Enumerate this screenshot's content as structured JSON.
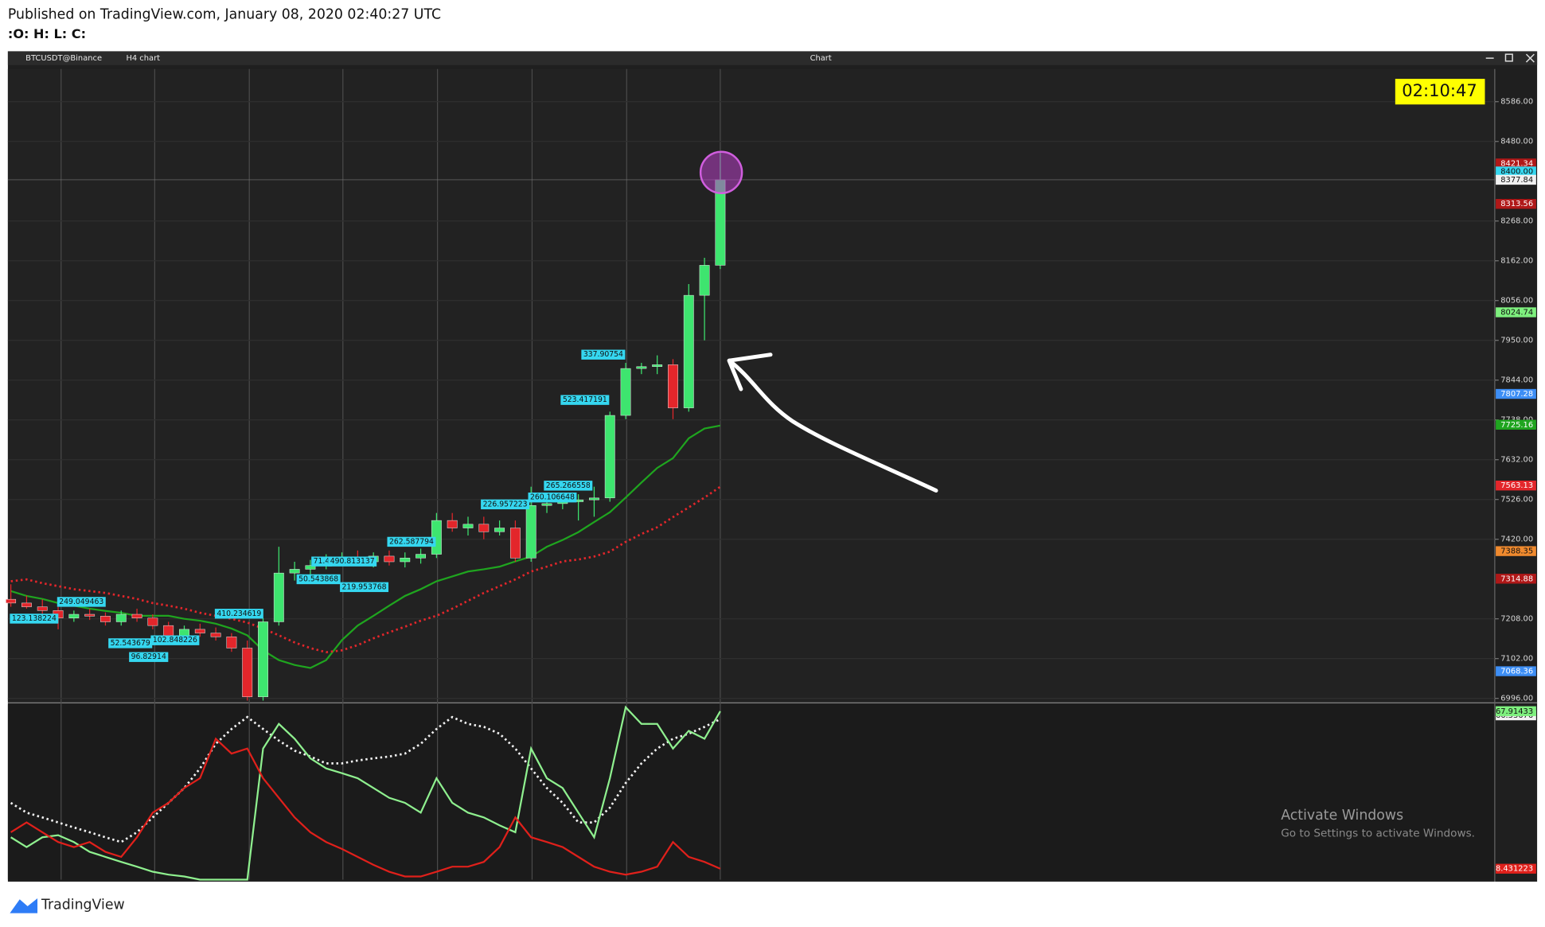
{
  "header": {
    "title": "Published on TradingView.com, January 08, 2020 02:40:27 UTC",
    "ohlc": ":O:  H:  L:  C:"
  },
  "toolbar": {
    "symbol": "BTCUSDT@Binance",
    "interval": "H4 chart",
    "window_title": "Chart"
  },
  "clock": "02:10:47",
  "watermark": {
    "title": "Activate Windows",
    "subtitle": "Go to Settings to activate Windows."
  },
  "footer": {
    "brand": "TradingView"
  },
  "chart_data": [
    {
      "type": "candlestick",
      "open": [
        7260,
        7250,
        7240,
        7230,
        7210,
        7220,
        7215,
        7200,
        7220,
        7210,
        7190,
        7160,
        7180,
        7170,
        7160,
        7130,
        7000,
        7200,
        7330,
        7340,
        7350,
        7365,
        7370,
        7360,
        7375,
        7360,
        7370,
        7380,
        7470,
        7450,
        7460,
        7440,
        7450,
        7370,
        7510,
        7515,
        7520,
        7525,
        7530,
        7750,
        7875,
        7880,
        7885,
        7770,
        8070,
        8150
      ],
      "high": [
        7300,
        7270,
        7260,
        7240,
        7230,
        7235,
        7225,
        7230,
        7235,
        7220,
        7200,
        7190,
        7195,
        7185,
        7170,
        7150,
        7210,
        7400,
        7360,
        7365,
        7380,
        7385,
        7390,
        7385,
        7390,
        7385,
        7395,
        7490,
        7490,
        7480,
        7480,
        7470,
        7470,
        7560,
        7530,
        7540,
        7540,
        7560,
        7760,
        7890,
        7890,
        7910,
        7900,
        8100,
        8170,
        8450
      ],
      "low": [
        7240,
        7235,
        7220,
        7180,
        7200,
        7205,
        7190,
        7190,
        7200,
        7180,
        7150,
        7150,
        7160,
        7150,
        7120,
        6990,
        6990,
        7190,
        7310,
        7325,
        7340,
        7350,
        7350,
        7345,
        7350,
        7345,
        7355,
        7370,
        7440,
        7430,
        7420,
        7430,
        7360,
        7360,
        7490,
        7500,
        7470,
        7480,
        7520,
        7740,
        7860,
        7860,
        7740,
        7760,
        7950,
        8140
      ],
      "close": [
        7250,
        7240,
        7230,
        7210,
        7220,
        7215,
        7200,
        7220,
        7210,
        7190,
        7160,
        7180,
        7170,
        7160,
        7130,
        7000,
        7200,
        7330,
        7340,
        7350,
        7365,
        7370,
        7360,
        7375,
        7360,
        7370,
        7380,
        7470,
        7450,
        7460,
        7440,
        7450,
        7370,
        7510,
        7515,
        7520,
        7525,
        7530,
        7750,
        7875,
        7880,
        7885,
        7770,
        8070,
        8150,
        8378
      ],
      "up_color": "#3ee56f",
      "down_color": "#e3262b",
      "ylim": [
        6988,
        8673
      ],
      "yticks": [
        {
          "value": 6996,
          "label": "6996.00"
        },
        {
          "value": 7102,
          "label": "7102.00"
        },
        {
          "value": 7208,
          "label": "7208.00"
        },
        {
          "value": 7420,
          "label": "7420.00"
        },
        {
          "value": 7526,
          "label": "7526.00"
        },
        {
          "value": 7632,
          "label": "7632.00"
        },
        {
          "value": 7738,
          "label": "7738.00"
        },
        {
          "value": 7844,
          "label": "7844.00"
        },
        {
          "value": 7950,
          "label": "7950.00"
        },
        {
          "value": 8056,
          "label": "8056.00"
        },
        {
          "value": 8162,
          "label": "8162.00"
        },
        {
          "value": 8268,
          "label": "8268.00"
        },
        {
          "value": 8480,
          "label": "8480.00"
        },
        {
          "value": 8586,
          "label": "8586.00"
        }
      ],
      "grid": true,
      "series": [
        {
          "color": "#1fa51f",
          "dash": false,
          "values": [
            7282,
            7269,
            7261,
            7250,
            7243,
            7235,
            7229,
            7224,
            7216,
            7216,
            7216,
            7208,
            7203,
            7195,
            7182,
            7164,
            7124,
            7098,
            7085,
            7077,
            7098,
            7151,
            7190,
            7216,
            7243,
            7269,
            7287,
            7308,
            7321,
            7334,
            7340,
            7347,
            7361,
            7374,
            7400,
            7418,
            7439,
            7466,
            7492,
            7531,
            7571,
            7610,
            7636,
            7689,
            7715,
            7723
          ]
        },
        {
          "color": "#e3262b",
          "dash": true,
          "values": [
            7308,
            7313,
            7303,
            7295,
            7287,
            7282,
            7277,
            7269,
            7261,
            7250,
            7243,
            7235,
            7224,
            7216,
            7208,
            7198,
            7182,
            7164,
            7145,
            7130,
            7119,
            7124,
            7138,
            7156,
            7172,
            7187,
            7203,
            7216,
            7235,
            7256,
            7277,
            7295,
            7313,
            7334,
            7347,
            7361,
            7366,
            7374,
            7387,
            7413,
            7434,
            7452,
            7479,
            7505,
            7531,
            7560
          ]
        }
      ],
      "price_tags": [
        {
          "value": 8421.34,
          "label": "8421.34",
          "color": "#b01818"
        },
        {
          "value": 8400,
          "label": "8400.00",
          "color": "#35d7f0"
        },
        {
          "value": 8377.84,
          "label": "8377.84",
          "color": "#f0f0f0"
        },
        {
          "value": 8313.56,
          "label": "8313.56",
          "color": "#b01818"
        },
        {
          "value": 8024.74,
          "label": "8024.74",
          "color": "#7ef07e"
        },
        {
          "value": 7807.28,
          "label": "7807.28",
          "color": "#3d8ef5"
        },
        {
          "value": 7725.16,
          "label": "7725.16",
          "color": "#1fa51f"
        },
        {
          "value": 7563.13,
          "label": "7563.13",
          "color": "#e3262b"
        },
        {
          "value": 7388.35,
          "label": "7388.35",
          "color": "#f08a2e"
        },
        {
          "value": 7314.88,
          "label": "7314.88",
          "color": "#b01818"
        },
        {
          "value": 7068.36,
          "label": "7068.36",
          "color": "#3d8ef5"
        }
      ],
      "annotations": [
        "337.90754",
        "523.417191",
        "265.266558",
        "260.106648",
        "226.957223",
        "262.587794",
        "71.4",
        "490.813137",
        "50.543868",
        "219.953768",
        "249.049463",
        "410.234619",
        "123.138224",
        "52.543679",
        "102.848226",
        "96.82914"
      ]
    },
    {
      "type": "line",
      "ylim": [
        4.3,
        70.5
      ],
      "series": [
        {
          "color": "#f2f2f2",
          "dash": true,
          "values": [
            33.3,
            29.6,
            27.8,
            25.9,
            24.0,
            22.2,
            20.3,
            18.5,
            22.2,
            27.8,
            33.3,
            38.9,
            46.3,
            55.6,
            61.2,
            65.7,
            61.2,
            56.8,
            53.0,
            50.8,
            48.2,
            48.2,
            49.3,
            50.1,
            50.8,
            51.9,
            55.6,
            61.2,
            65.7,
            63.1,
            62.0,
            59.4,
            53.8,
            46.3,
            38.9,
            33.3,
            25.9,
            25.9,
            31.5,
            40.8,
            48.2,
            53.8,
            57.5,
            59.4,
            62.0,
            64.9
          ]
        },
        {
          "color": "#8ff08f",
          "dash": false,
          "values": [
            20.3,
            16.6,
            20.3,
            21.1,
            18.5,
            14.8,
            12.9,
            11.0,
            9.2,
            7.3,
            6.2,
            5.5,
            4.3,
            4.3,
            4.3,
            4.3,
            53.8,
            63.1,
            57.5,
            50.1,
            46.3,
            44.5,
            42.6,
            38.9,
            35.2,
            33.3,
            29.6,
            42.6,
            33.3,
            29.6,
            27.8,
            24.8,
            22.2,
            53.8,
            42.6,
            38.9,
            29.6,
            20.3,
            42.6,
            69.4,
            63.1,
            63.1,
            53.8,
            60.5,
            57.5,
            67.91
          ]
        },
        {
          "color": "#e0201b",
          "dash": false,
          "values": [
            22.2,
            25.9,
            22.2,
            18.5,
            16.6,
            18.5,
            14.8,
            12.9,
            20.3,
            29.6,
            33.3,
            38.9,
            42.6,
            57.5,
            51.9,
            53.8,
            42.6,
            35.2,
            27.8,
            22.2,
            18.5,
            15.9,
            12.9,
            9.9,
            7.3,
            5.5,
            5.5,
            7.3,
            9.2,
            9.2,
            11.0,
            16.6,
            27.8,
            20.3,
            18.5,
            16.6,
            12.9,
            9.2,
            7.3,
            6.2,
            7.3,
            9.2,
            18.5,
            12.9,
            11.0,
            8.43
          ]
        }
      ],
      "price_tags": [
        {
          "value": 66.33676,
          "label": "66.33676",
          "color": "#f2f2f2"
        },
        {
          "value": 67.91433,
          "label": "67.91433",
          "color": "#7ef07e"
        },
        {
          "value": 8.431223,
          "label": "8.431223",
          "color": "#e0201b"
        }
      ]
    }
  ]
}
